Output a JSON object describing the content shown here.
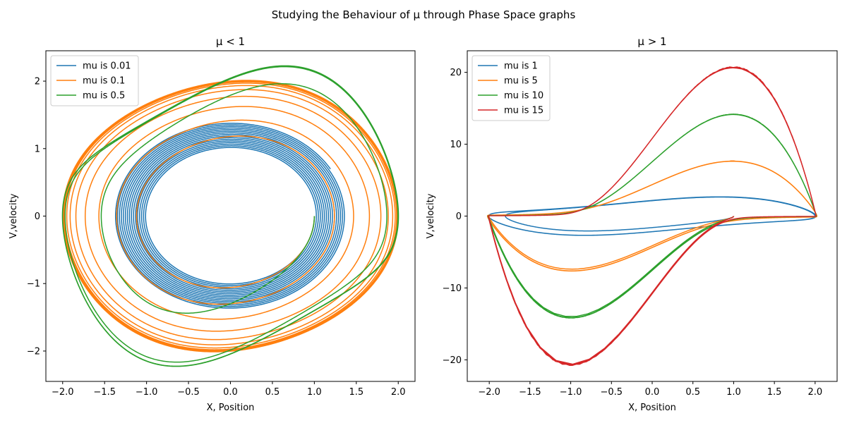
{
  "suptitle": "Studying the Behaviour of μ through Phase Space graphs",
  "chart_data": [
    {
      "type": "line",
      "title": "μ < 1",
      "xlabel": "X, Position",
      "ylabel": "V,velocity",
      "xlim": [
        -2.2,
        2.2
      ],
      "ylim": [
        -2.45,
        2.45
      ],
      "xticks": [
        -2.0,
        -1.5,
        -1.0,
        -0.5,
        0.0,
        0.5,
        1.0,
        1.5,
        2.0
      ],
      "xtick_labels": [
        "−2.0",
        "−1.5",
        "−1.0",
        "−0.5",
        "0.0",
        "0.5",
        "1.0",
        "1.5",
        "2.0"
      ],
      "yticks": [
        -2,
        -1,
        0,
        1,
        2
      ],
      "ytick_labels": [
        "−2",
        "−1",
        "0",
        "1",
        "2"
      ],
      "grid": false,
      "legend": "upper-left",
      "series": [
        {
          "name": "mu is 0.01",
          "mu": 0.01,
          "color": "#1f77b4",
          "x0": 1.0,
          "v0": 0.0
        },
        {
          "name": "mu is 0.1",
          "mu": 0.1,
          "color": "#ff7f0e",
          "x0": 1.0,
          "v0": 0.0
        },
        {
          "name": "mu is 0.5",
          "mu": 0.5,
          "color": "#2ca02c",
          "x0": 1.0,
          "v0": 0.0
        }
      ]
    },
    {
      "type": "line",
      "title": "μ > 1",
      "xlabel": "X, Position",
      "ylabel": "V,velocity",
      "xlim": [
        -2.27,
        2.27
      ],
      "ylim": [
        -23,
        23
      ],
      "xticks": [
        -2.0,
        -1.5,
        -1.0,
        -0.5,
        0.0,
        0.5,
        1.0,
        1.5,
        2.0
      ],
      "xtick_labels": [
        "−2.0",
        "−1.5",
        "−1.0",
        "−0.5",
        "0.0",
        "0.5",
        "1.0",
        "1.5",
        "2.0"
      ],
      "yticks": [
        -20,
        -10,
        0,
        10,
        20
      ],
      "ytick_labels": [
        "−20",
        "−10",
        "0",
        "10",
        "20"
      ],
      "grid": false,
      "legend": "upper-left",
      "series": [
        {
          "name": "mu is 1",
          "mu": 1,
          "color": "#1f77b4",
          "x0": 1.0,
          "v0": 0.0
        },
        {
          "name": "mu is 5",
          "mu": 5,
          "color": "#ff7f0e",
          "x0": 1.0,
          "v0": 0.0
        },
        {
          "name": "mu is 10",
          "mu": 10,
          "color": "#2ca02c",
          "x0": 1.0,
          "v0": 0.0
        },
        {
          "name": "mu is 15",
          "mu": 15,
          "color": "#d62728",
          "x0": 1.0,
          "v0": 0.0
        }
      ]
    }
  ]
}
